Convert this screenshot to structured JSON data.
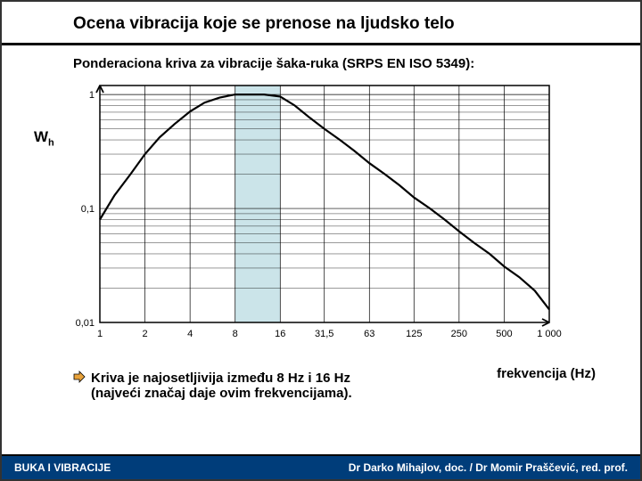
{
  "header": {
    "title": "Ocena vibracija koje se prenose na ljudsko telo"
  },
  "subtitle": "Ponderaciona kriva za vibracije šaka-ruka (SRPS EN ISO 5349):",
  "chart": {
    "type": "line",
    "x_scale": "log",
    "y_scale": "log",
    "xlim": [
      1,
      1000
    ],
    "ylim": [
      0.01,
      1.2
    ],
    "x_ticks": [
      1,
      2,
      4,
      8,
      16,
      31.5,
      63,
      125,
      250,
      500,
      1000
    ],
    "x_tick_labels": [
      "1",
      "2",
      "4",
      "8",
      "16",
      "31,5",
      "63",
      "125",
      "250",
      "500",
      "1 000"
    ],
    "y_ticks": [
      0.01,
      0.1,
      1
    ],
    "y_tick_labels": [
      "0,01",
      "0,1",
      "1"
    ],
    "y_axis_label_html": "W<sub>h</sub>",
    "x_axis_label": "frekvencija (Hz)",
    "curve": [
      [
        1,
        0.08
      ],
      [
        1.25,
        0.13
      ],
      [
        1.6,
        0.2
      ],
      [
        2,
        0.3
      ],
      [
        2.5,
        0.42
      ],
      [
        3.15,
        0.55
      ],
      [
        4,
        0.71
      ],
      [
        5,
        0.85
      ],
      [
        6.3,
        0.94
      ],
      [
        8,
        1.0
      ],
      [
        10,
        1.0
      ],
      [
        12.5,
        1.0
      ],
      [
        16,
        0.96
      ],
      [
        20,
        0.8
      ],
      [
        25,
        0.63
      ],
      [
        31.5,
        0.5
      ],
      [
        40,
        0.4
      ],
      [
        50,
        0.32
      ],
      [
        63,
        0.25
      ],
      [
        80,
        0.2
      ],
      [
        100,
        0.16
      ],
      [
        125,
        0.125
      ],
      [
        160,
        0.1
      ],
      [
        200,
        0.08
      ],
      [
        250,
        0.063
      ],
      [
        315,
        0.05
      ],
      [
        400,
        0.04
      ],
      [
        500,
        0.031
      ],
      [
        630,
        0.025
      ],
      [
        800,
        0.019
      ],
      [
        1000,
        0.013
      ]
    ],
    "highlight_band": {
      "from": 8,
      "to": 16,
      "fill": "#b5d8e0",
      "opacity": 0.7
    },
    "line_color": "#000000",
    "line_width": 2.2,
    "grid_color": "#000000",
    "grid_width": 0.7,
    "background": "#ffffff",
    "tick_fontsize": 11
  },
  "bullet": {
    "line1": "Kriva je najosetljivija između 8 Hz i 16 Hz",
    "line2": "(najveći značaj daje ovim frekvencijama).",
    "arrow_fill": "#e8a23a",
    "arrow_stroke": "#000000"
  },
  "footer": {
    "left": "BUKA I VIBRACIJE",
    "right": "Dr Darko Mihajlov, doc. / Dr Momir Praščević, red. prof.",
    "bg": "#003d7a",
    "fg": "#ffffff"
  }
}
